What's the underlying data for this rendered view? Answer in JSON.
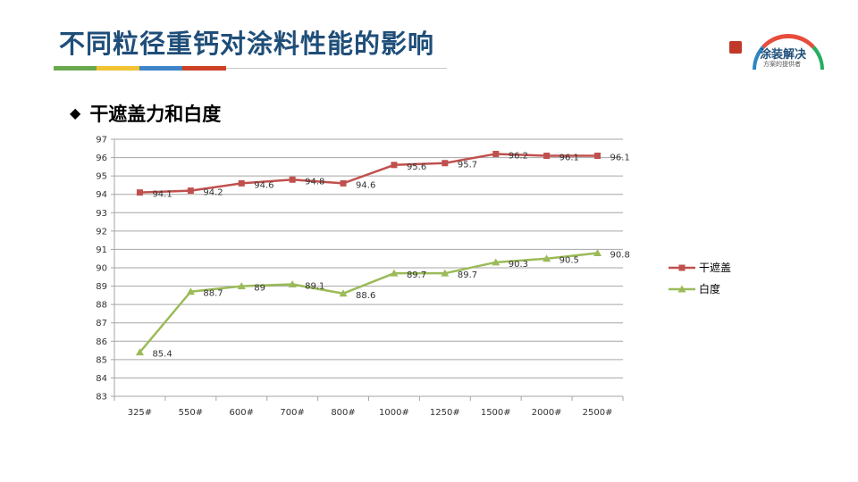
{
  "page": {
    "title": "不同粒径重钙对涂料性能的影响",
    "title_rule_colors": [
      "#6aa84f",
      "#f1c232",
      "#3d85c6",
      "#cc4125"
    ],
    "logo": {
      "brand": "涂装解决",
      "slogan": "方案的提供者"
    },
    "section_marker_icon": "diamond-icon",
    "section_title": "干遮盖力和白度"
  },
  "chart_data": {
    "type": "line",
    "title": "",
    "xlabel": "",
    "ylabel": "",
    "categories": [
      "325#",
      "550#",
      "600#",
      "700#",
      "800#",
      "1000#",
      "1250#",
      "1500#",
      "2000#",
      "2500#"
    ],
    "ylim": [
      83,
      97
    ],
    "y_ticks": [
      "83",
      "84",
      "85",
      "86",
      "87",
      "88",
      "89",
      "90",
      "91",
      "92",
      "93",
      "94",
      "95",
      "96",
      "97"
    ],
    "grid": true,
    "legend_position": "right",
    "series": [
      {
        "name": "干遮盖",
        "color": "#c0504d",
        "marker": "square",
        "values": [
          94.1,
          94.2,
          94.6,
          94.8,
          94.6,
          95.6,
          95.7,
          96.2,
          96.1,
          96.1
        ],
        "labels": [
          "94.1",
          "94.2",
          "94.6",
          "94.8",
          "94.6",
          "95.6",
          "95.7",
          "96.2",
          "96.1",
          "96.1"
        ]
      },
      {
        "name": "白度",
        "color": "#9bbb59",
        "marker": "triangle",
        "values": [
          85.4,
          88.7,
          89.0,
          89.1,
          88.6,
          89.7,
          89.7,
          90.3,
          90.5,
          90.8
        ],
        "labels": [
          "85.4",
          "88.7",
          "89",
          "89.1",
          "88.6",
          "89.7",
          "89.7",
          "90.3",
          "90.5",
          "90.8"
        ]
      }
    ]
  }
}
